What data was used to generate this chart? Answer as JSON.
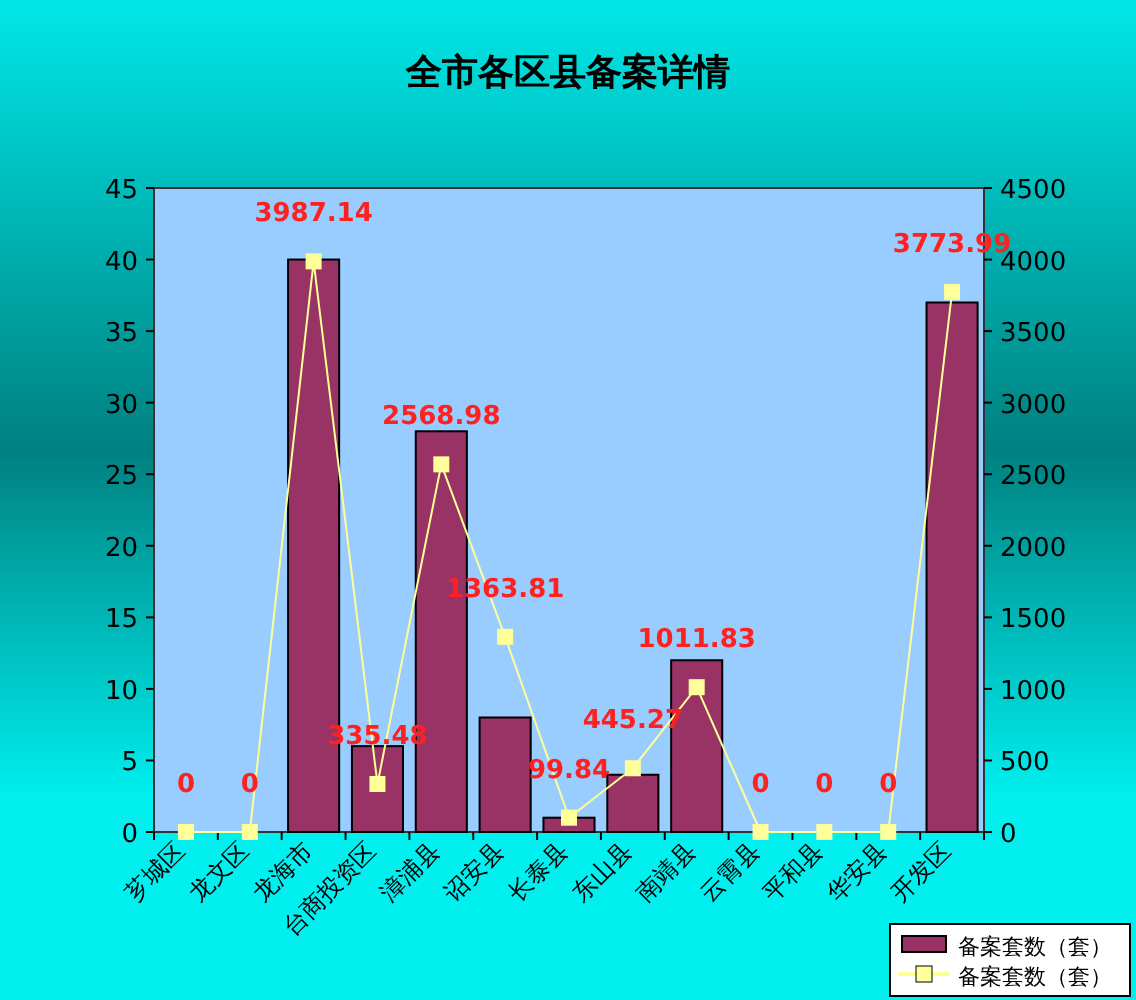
{
  "chart_data": {
    "type": "bar",
    "title": "全市各区县备案详情",
    "categories": [
      "芗城区",
      "龙文区",
      "龙海市",
      "台商投资区",
      "漳浦县",
      "诏安县",
      "长泰县",
      "东山县",
      "南靖县",
      "云霄县",
      "平和县",
      "华安县",
      "开发区"
    ],
    "series": [
      {
        "name": "备案套数（套）",
        "color": "#993366",
        "values": [
          0,
          0,
          40,
          6,
          28,
          8,
          1,
          4,
          12,
          0,
          0,
          0,
          37
        ]
      },
      {
        "name": "备案套数（套）",
        "type": "line",
        "axis": "y2",
        "color": "#ffff99",
        "marker": "square",
        "values": [
          0,
          0,
          3987.14,
          335.48,
          2568.98,
          1363.81,
          99.84,
          445.27,
          1011.83,
          0,
          0,
          0,
          3773.99
        ],
        "value_labels": [
          "0",
          "0",
          "3987.14",
          "335.48",
          "2568.98",
          "1363.81",
          "99.84",
          "445.27",
          "1011.83",
          "0",
          "0",
          "0",
          "3773.99"
        ]
      }
    ],
    "ylim": [
      0,
      45
    ],
    "yticks": [
      0,
      5,
      10,
      15,
      20,
      25,
      30,
      35,
      40,
      45
    ],
    "y2lim": [
      0,
      4500
    ],
    "y2ticks": [
      0,
      500,
      1000,
      1500,
      2000,
      2500,
      3000,
      3500,
      4000,
      4500
    ],
    "legend": "bottom right",
    "grid": false
  }
}
